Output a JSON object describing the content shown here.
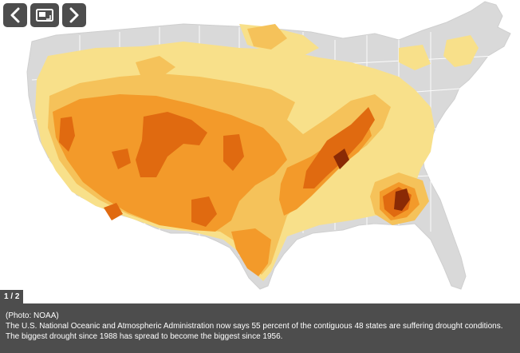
{
  "gallery": {
    "counter": "1 / 2",
    "prev_icon": "chevron-left-icon",
    "gallery_icon": "gallery-view-icon",
    "next_icon": "chevron-right-icon"
  },
  "caption": {
    "credit": "(Photo: NOAA)",
    "text": "The U.S. National Oceanic and Atmospheric Administration now says 55 percent of the contiguous 48 states are suffering drought conditions. The biggest drought since 1988 has spread to become the biggest since 1956."
  },
  "map_colors": {
    "land": "#d9d9d9",
    "state_line": "#ffffff",
    "abnormally_dry": "#f8e08a",
    "moderate": "#f5c25a",
    "severe": "#f39a2a",
    "extreme": "#e06a10",
    "exceptional": "#8a2a05"
  },
  "buttons": {
    "fill": "#4d4d4d"
  }
}
